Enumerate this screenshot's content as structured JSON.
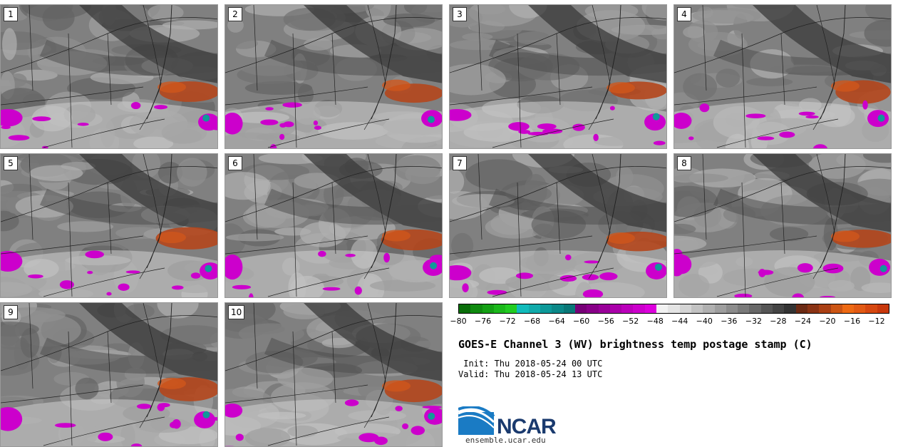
{
  "panels": [
    {
      "label": "1"
    },
    {
      "label": "2"
    },
    {
      "label": "3"
    },
    {
      "label": "4"
    },
    {
      "label": "5"
    },
    {
      "label": "6"
    },
    {
      "label": "7"
    },
    {
      "label": "8"
    },
    {
      "label": "9"
    },
    {
      "label": "10"
    }
  ],
  "colorbar": {
    "colors": [
      "#0a6e0a",
      "#0f8a0f",
      "#14a014",
      "#1bb81b",
      "#22cc22",
      "#11bbbb",
      "#10aaaa",
      "#0d9999",
      "#0b8888",
      "#097777",
      "#770077",
      "#880088",
      "#990099",
      "#aa00aa",
      "#bb00bb",
      "#cc00cc",
      "#dd00dd",
      "#f2f2f2",
      "#e4e4e4",
      "#d4d4d4",
      "#c2c2c2",
      "#b0b0b0",
      "#9e9e9e",
      "#8c8c8c",
      "#7a7a7a",
      "#686868",
      "#555555",
      "#444444",
      "#333333",
      "#6b2a14",
      "#8a3314",
      "#aa4014",
      "#cc5514",
      "#ee6a14",
      "#e25a14",
      "#d64810",
      "#c8380c"
    ],
    "tick_labels": [
      "−80",
      "−76",
      "−72",
      "−68",
      "−64",
      "−60",
      "−56",
      "−52",
      "−48",
      "−44",
      "−40",
      "−36",
      "−32",
      "−28",
      "−24",
      "−20",
      "−16",
      "−12"
    ]
  },
  "title": "GOES-E Channel 3 (WV) brightness temp postage stamp (C)",
  "init": " Init: Thu 2018-05-24 00 UTC",
  "valid": "Valid: Thu 2018-05-24 13 UTC",
  "logo": {
    "text": "NCAR"
  },
  "site": "ensemble.ucar.edu"
}
